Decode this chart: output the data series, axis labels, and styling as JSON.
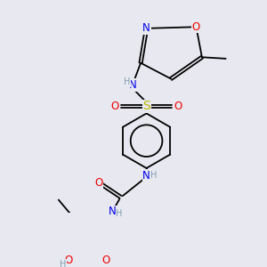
{
  "bg_color": "#e8e8f0",
  "atom_colors": {
    "C": "#000000",
    "N": "#0000ee",
    "O": "#ee0000",
    "S": "#bbbb00",
    "H": "#7f9faf"
  },
  "bond_color": "#000000",
  "lw": 1.3,
  "fs": 8.5,
  "fs_small": 7.0
}
